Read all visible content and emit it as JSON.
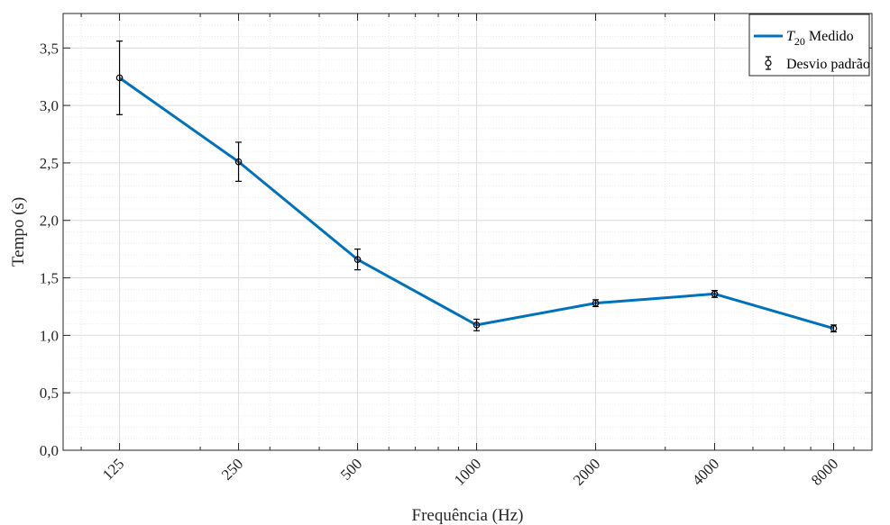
{
  "chart_data": {
    "type": "line",
    "xlabel": "Frequência (Hz)",
    "ylabel": "Tempo (s)",
    "x_scale": "log",
    "x_ticks": [
      "125",
      "250",
      "500",
      "1000",
      "2000",
      "4000",
      "8000"
    ],
    "y_ticks": [
      "0,0",
      "0,5",
      "1,0",
      "1,5",
      "2,0",
      "2,5",
      "3,0",
      "3,5"
    ],
    "ylim": [
      0,
      3.8
    ],
    "grid": true,
    "legend_position": "top-right",
    "series": [
      {
        "name_main": "T",
        "name_sub": "20",
        "name_rest": " Medido",
        "color": "#0072BD",
        "x": [
          125,
          250,
          500,
          1000,
          2000,
          4000,
          8000
        ],
        "y": [
          3.24,
          2.51,
          1.66,
          1.09,
          1.28,
          1.36,
          1.06
        ]
      },
      {
        "name": "Desvio padrão",
        "color": "#000000",
        "x": [
          125,
          250,
          500,
          1000,
          2000,
          4000,
          8000
        ],
        "y": [
          3.24,
          2.51,
          1.66,
          1.09,
          1.28,
          1.36,
          1.06
        ],
        "error": [
          0.32,
          0.17,
          0.09,
          0.05,
          0.03,
          0.03,
          0.03
        ]
      }
    ]
  }
}
